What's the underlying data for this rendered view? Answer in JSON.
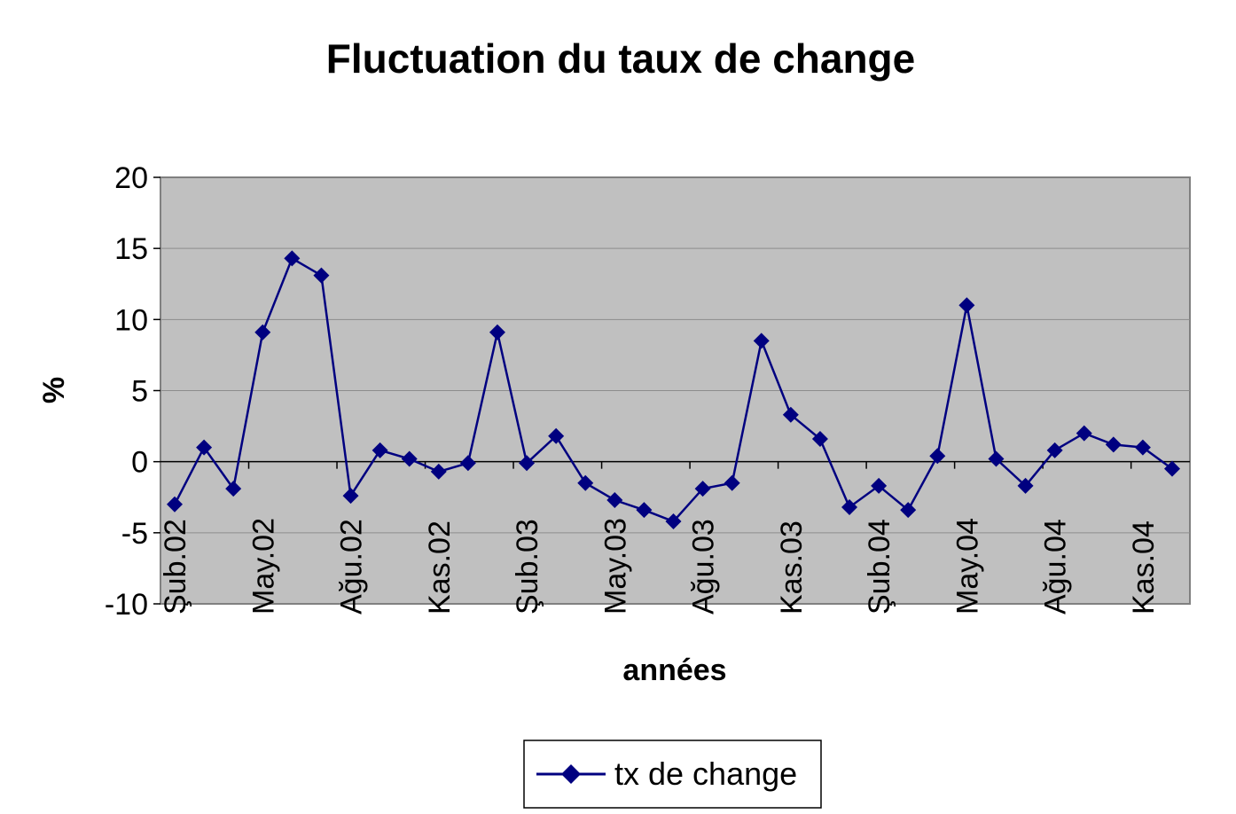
{
  "chart_data": {
    "type": "line",
    "title": "Fluctuation du taux de change",
    "xlabel": "années",
    "ylabel": "%",
    "ylim": [
      -10,
      20
    ],
    "yticks": [
      -10,
      -5,
      0,
      5,
      10,
      15,
      20
    ],
    "grid": true,
    "legend": "bottom",
    "colors": {
      "series": "#000080",
      "plot_background": "#c0c0c0",
      "grid": "#8c8c8c"
    },
    "xtick_labels": [
      "Şub.02",
      "May.02",
      "Ağu.02",
      "Kas.02",
      "Şub.03",
      "May.03",
      "Ağu.03",
      "Kas.03",
      "Şub.04",
      "May.04",
      "Ağu.04",
      "Kas.04"
    ],
    "series": [
      {
        "name": "tx de change",
        "values": [
          -3,
          1,
          -1.9,
          9.1,
          14.3,
          13.1,
          -2.4,
          0.8,
          0.2,
          -0.7,
          -0.1,
          9.1,
          -0.1,
          1.8,
          -1.5,
          -2.7,
          -3.4,
          -4.2,
          -1.9,
          -1.5,
          8.5,
          3.3,
          1.6,
          -3.2,
          -1.7,
          -3.4,
          0.4,
          11.0,
          0.2,
          -1.7,
          0.8,
          2.0,
          1.2,
          1.0,
          -0.5
        ]
      }
    ]
  }
}
